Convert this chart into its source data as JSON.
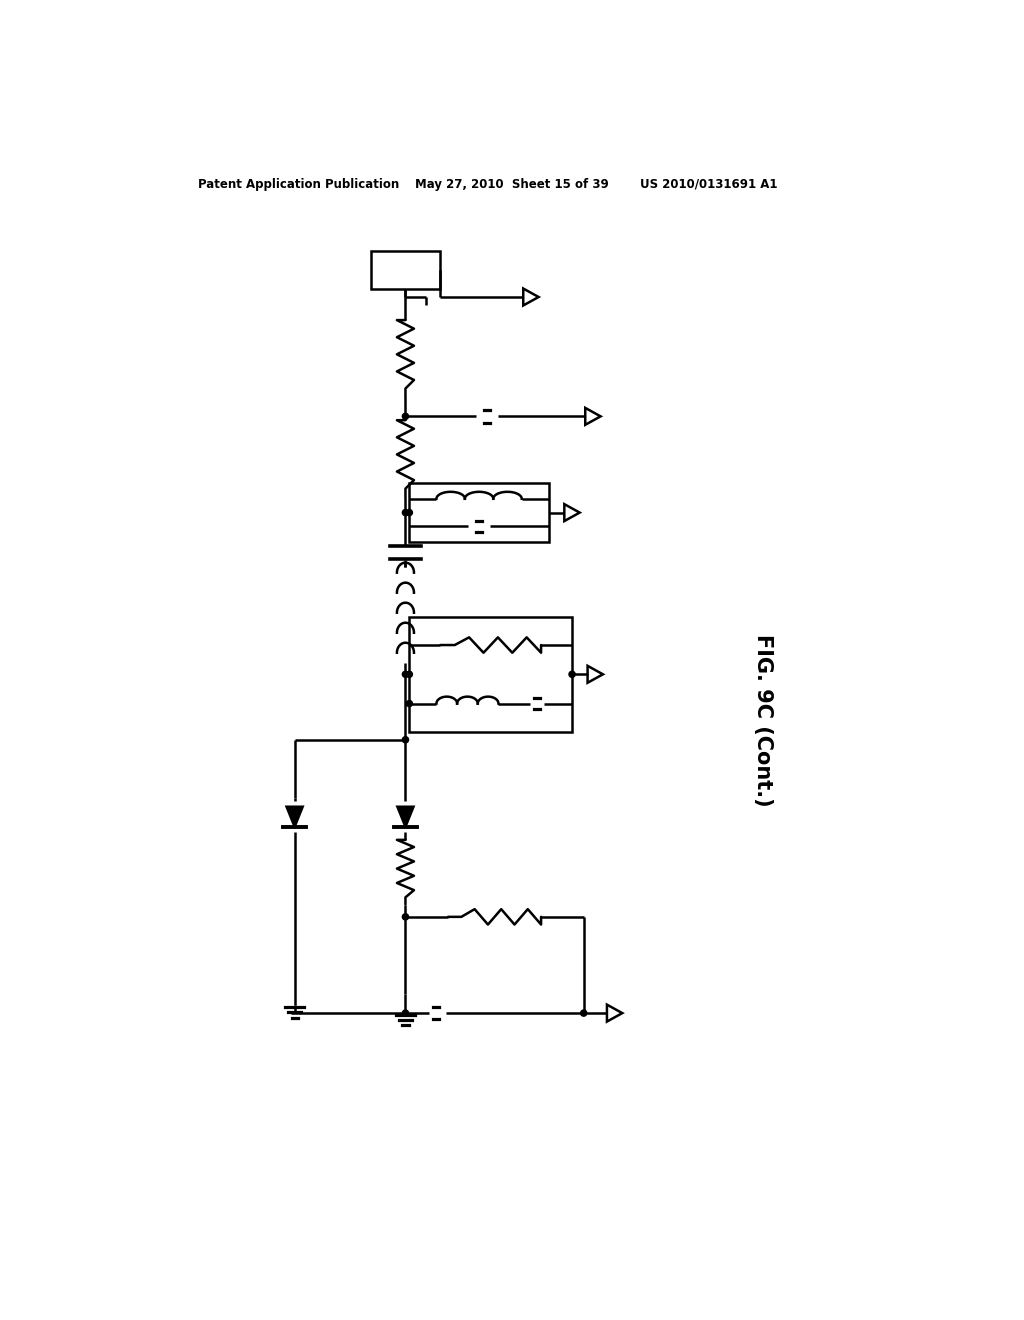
{
  "background_color": "#ffffff",
  "line_color": "#000000",
  "lw": 1.8,
  "header_left": "Patent Application Publication",
  "header_mid": "May 27, 2010  Sheet 15 of 39",
  "header_right": "US 2010/0131691 A1",
  "fig_label": "FIG. 9C (Cont.)"
}
